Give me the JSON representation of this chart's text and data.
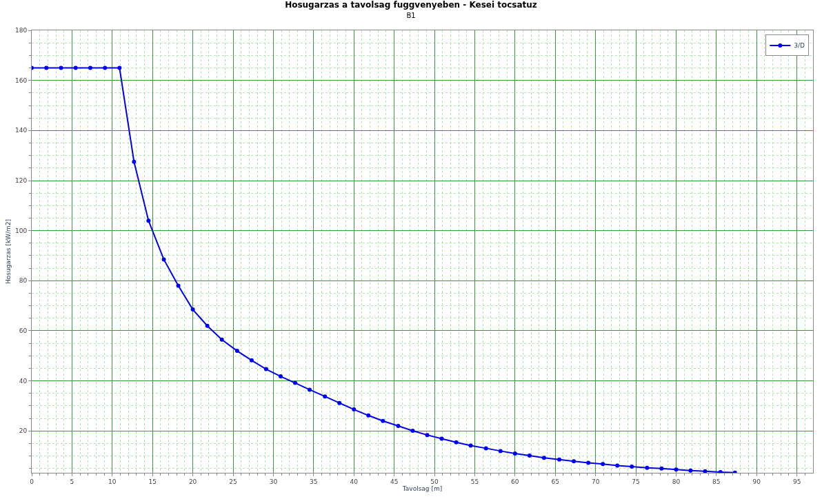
{
  "chart_data": {
    "type": "line",
    "title": "Hosugarzas a tavolsag fuggvenyeben - Kesei tocsatuz",
    "subtitle": "B1",
    "xlabel": "Tavolsag [m]",
    "ylabel": "Hosugarzas [kW/m2]",
    "x": [
      0,
      1.82,
      3.64,
      5.45,
      7.27,
      9.09,
      10.9,
      12.7,
      14.5,
      16.4,
      18.2,
      20.0,
      21.8,
      23.6,
      25.5,
      27.3,
      29.1,
      30.9,
      32.7,
      34.5,
      36.4,
      38.2,
      40.0,
      41.8,
      43.6,
      45.5,
      47.3,
      49.1,
      50.9,
      52.7,
      54.5,
      56.4,
      58.2,
      60.0,
      61.8,
      63.6,
      65.5,
      67.3,
      69.1,
      70.9,
      72.7,
      74.5,
      76.4,
      78.2,
      80.0,
      81.8,
      83.6,
      85.5,
      87.3
    ],
    "series": [
      {
        "name": "3/D",
        "color": "#0000ee",
        "values": [
          165,
          165,
          165,
          165,
          165,
          165,
          165,
          127.5,
          104,
          88.5,
          78,
          68.5,
          62,
          56.5,
          52,
          48.2,
          44.7,
          41.8,
          39.2,
          36.5,
          33.8,
          31.2,
          28.6,
          26.2,
          24,
          22,
          20.1,
          18.4,
          16.9,
          15.5,
          14.2,
          13.1,
          12,
          11,
          10.2,
          9.3,
          8.6,
          7.9,
          7.3,
          6.8,
          6.2,
          5.8,
          5.3,
          5,
          4.6,
          4.2,
          3.9,
          3.6,
          3.4
        ]
      }
    ],
    "xlim": [
      0,
      97
    ],
    "xticks": [
      0,
      5,
      10,
      15,
      20,
      25,
      30,
      35,
      40,
      45,
      50,
      55,
      60,
      65,
      70,
      75,
      80,
      85,
      90,
      95,
      {
        "value": 1,
        "label": null
      },
      {
        "value": 2,
        "label": null
      },
      {
        "value": 3,
        "label": null
      },
      {
        "value": 4,
        "label": null
      },
      {
        "value": 6,
        "label": null
      },
      {
        "value": 7,
        "label": null
      },
      {
        "value": 8,
        "label": null
      },
      {
        "value": 9,
        "label": null
      },
      {
        "value": 11,
        "label": null
      },
      {
        "value": 12,
        "label": null
      },
      {
        "value": 13,
        "label": null
      },
      {
        "value": 14,
        "label": null
      },
      {
        "value": 16,
        "label": null
      },
      {
        "value": 17,
        "label": null
      },
      {
        "value": 18,
        "label": null
      },
      {
        "value": 19,
        "label": null
      },
      {
        "value": 21,
        "label": null
      },
      {
        "value": 22,
        "label": null
      },
      {
        "value": 23,
        "label": null
      },
      {
        "value": 24,
        "label": null
      },
      {
        "value": 26,
        "label": null
      },
      {
        "value": 27,
        "label": null
      },
      {
        "value": 28,
        "label": null
      },
      {
        "value": 29,
        "label": null
      },
      {
        "value": 31,
        "label": null
      },
      {
        "value": 32,
        "label": null
      },
      {
        "value": 33,
        "label": null
      },
      {
        "value": 34,
        "label": null
      },
      {
        "value": 36,
        "label": null
      },
      {
        "value": 37,
        "label": null
      },
      {
        "value": 38,
        "label": null
      },
      {
        "value": 39,
        "label": null
      },
      {
        "value": 41,
        "label": null
      },
      {
        "value": 42,
        "label": null
      },
      {
        "value": 43,
        "label": null
      },
      {
        "value": 44,
        "label": null
      },
      {
        "value": 46,
        "label": null
      },
      {
        "value": 47,
        "label": null
      },
      {
        "value": 48,
        "label": null
      },
      {
        "value": 49,
        "label": null
      },
      {
        "value": 51,
        "label": null
      },
      {
        "value": 52,
        "label": null
      },
      {
        "value": 53,
        "label": null
      },
      {
        "value": 54,
        "label": null
      },
      {
        "value": 56,
        "label": null
      },
      {
        "value": 57,
        "label": null
      },
      {
        "value": 58,
        "label": null
      },
      {
        "value": 59,
        "label": null
      },
      {
        "value": 61,
        "label": null
      },
      {
        "value": 62,
        "label": null
      },
      {
        "value": 63,
        "label": null
      },
      {
        "value": 64,
        "label": null
      },
      {
        "value": 66,
        "label": null
      },
      {
        "value": 67,
        "label": null
      },
      {
        "value": 68,
        "label": null
      },
      {
        "value": 69,
        "label": null
      },
      {
        "value": 71,
        "label": null
      },
      {
        "value": 72,
        "label": null
      },
      {
        "value": 73,
        "label": null
      },
      {
        "value": 74,
        "label": null
      },
      {
        "value": 76,
        "label": null
      },
      {
        "value": 77,
        "label": null
      },
      {
        "value": 78,
        "label": null
      },
      {
        "value": 79,
        "label": null
      },
      {
        "value": 81,
        "label": null
      },
      {
        "value": 82,
        "label": null
      },
      {
        "value": 83,
        "label": null
      },
      {
        "value": 84,
        "label": null
      },
      {
        "value": 86,
        "label": null
      },
      {
        "value": 87,
        "label": null
      },
      {
        "value": 88,
        "label": null
      },
      {
        "value": 89,
        "label": null
      },
      {
        "value": 91,
        "label": null
      },
      {
        "value": 92,
        "label": null
      },
      {
        "value": 93,
        "label": null
      },
      {
        "value": 94,
        "label": null
      },
      {
        "value": 96,
        "label": null
      }
    ],
    "ylim": [
      3.3,
      180
    ],
    "yticks": [
      20,
      40,
      60,
      80,
      100,
      120,
      140,
      160,
      180,
      {
        "value": 5,
        "label": null
      },
      {
        "value": 10,
        "label": null
      },
      {
        "value": 15,
        "label": null
      },
      {
        "value": 25,
        "label": null
      },
      {
        "value": 30,
        "label": null
      },
      {
        "value": 35,
        "label": null
      },
      {
        "value": 45,
        "label": null
      },
      {
        "value": 50,
        "label": null
      },
      {
        "value": 55,
        "label": null
      },
      {
        "value": 65,
        "label": null
      },
      {
        "value": 70,
        "label": null
      },
      {
        "value": 75,
        "label": null
      },
      {
        "value": 85,
        "label": null
      },
      {
        "value": 90,
        "label": null
      },
      {
        "value": 95,
        "label": null
      },
      {
        "value": 105,
        "label": null
      },
      {
        "value": 110,
        "label": null
      },
      {
        "value": 115,
        "label": null
      },
      {
        "value": 125,
        "label": null
      },
      {
        "value": 130,
        "label": null
      },
      {
        "value": 135,
        "label": null
      },
      {
        "value": 145,
        "label": null
      },
      {
        "value": 150,
        "label": null
      },
      {
        "value": 155,
        "label": null
      },
      {
        "value": 165,
        "label": null
      },
      {
        "value": 170,
        "label": null
      },
      {
        "value": 175,
        "label": null
      }
    ],
    "grid": true,
    "legend": "top right",
    "marker": "circle",
    "line_style": "solid"
  }
}
